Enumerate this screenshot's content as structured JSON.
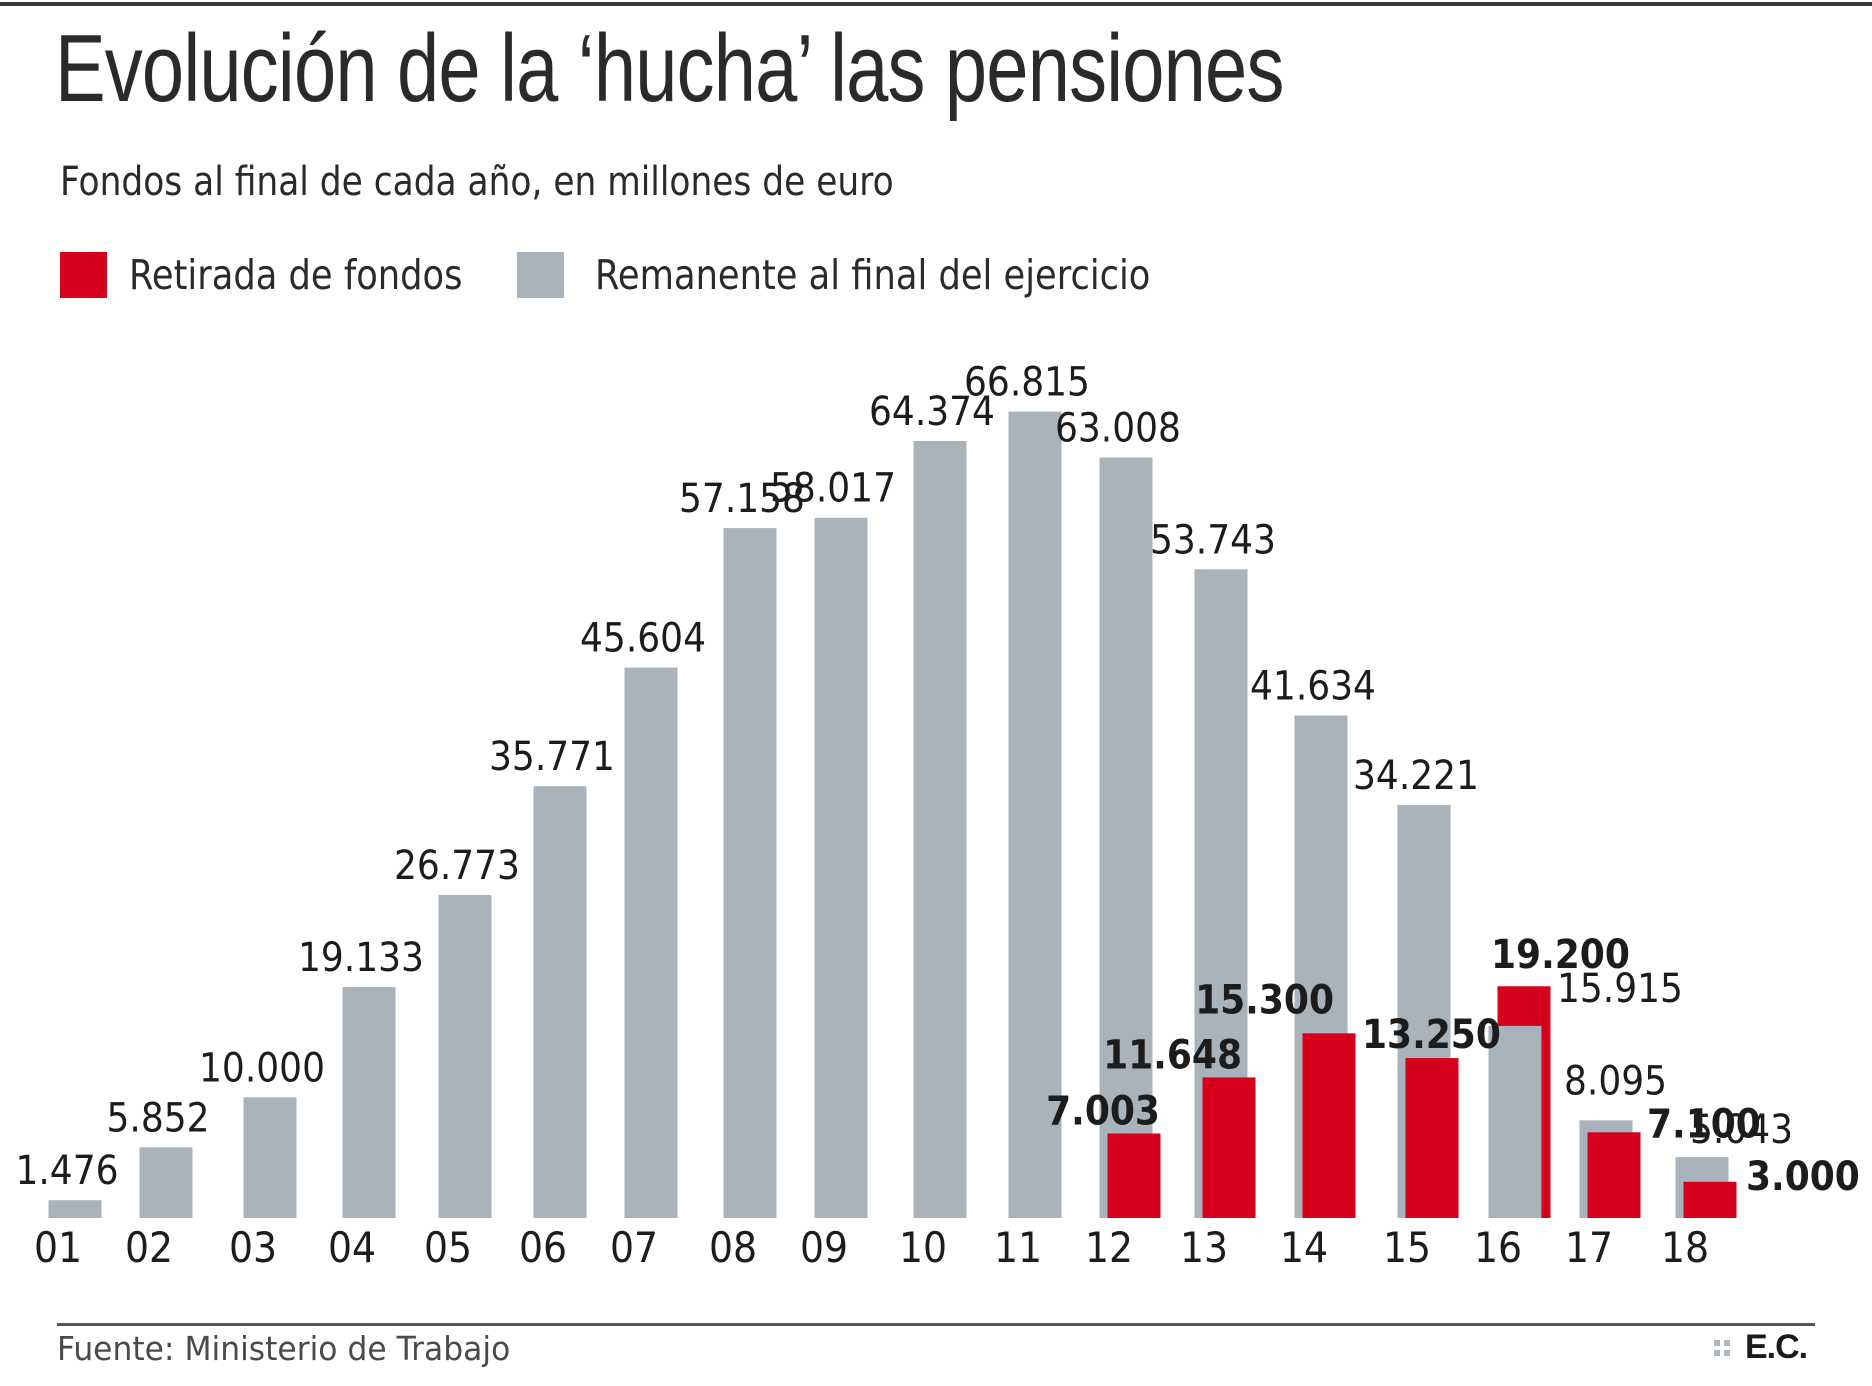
{
  "header": {
    "title": "Evolución de la ‘hucha’ las pensiones",
    "subtitle": "Fondos al final de cada año, en millones de euro"
  },
  "legend": {
    "items": [
      {
        "label": "Retirada de fondos",
        "color": "#d6001c"
      },
      {
        "label": "Remanente al final del ejercicio",
        "color": "#a8b3bb"
      }
    ]
  },
  "footer": {
    "source": "Fuente: Ministerio de Trabajo",
    "logo": "E.C."
  },
  "chart_data": {
    "type": "bar",
    "title": "Evolución de la ‘hucha’ las pensiones",
    "subtitle": "Fondos al final de cada año, en millones de euro",
    "xlabel": "",
    "ylabel": "",
    "ylim": [
      0,
      70000
    ],
    "grid": false,
    "legend_position": "top-left",
    "categories": [
      "01",
      "02",
      "03",
      "04",
      "05",
      "06",
      "07",
      "08",
      "09",
      "10",
      "11",
      "12",
      "13",
      "14",
      "15",
      "16",
      "17",
      "18"
    ],
    "series": [
      {
        "name": "Remanente al final del ejercicio",
        "color": "#a8b3bb",
        "values": [
          1476,
          5852,
          10000,
          19133,
          26773,
          35771,
          45604,
          57158,
          58017,
          64374,
          66815,
          63008,
          53743,
          41634,
          34221,
          15915,
          8095,
          5043
        ],
        "labels": [
          "1.476",
          "5.852",
          "10.000",
          "19.133",
          "26.773",
          "35.771",
          "45.604",
          "57.158",
          "58.017",
          "64.374",
          "66.815",
          "63.008",
          "53.743",
          "41.634",
          "34.221",
          "15.915",
          "8.095",
          "5.043"
        ]
      },
      {
        "name": "Retirada de fondos",
        "color": "#d6001c",
        "values": [
          null,
          null,
          null,
          null,
          null,
          null,
          null,
          null,
          null,
          null,
          null,
          7003,
          11648,
          15300,
          13250,
          19200,
          7100,
          3000
        ],
        "labels": [
          null,
          null,
          null,
          null,
          null,
          null,
          null,
          null,
          null,
          null,
          null,
          "7.003",
          "11.648",
          "15.300",
          "13.250",
          "19.200",
          "7.100",
          "3.000"
        ]
      }
    ]
  }
}
